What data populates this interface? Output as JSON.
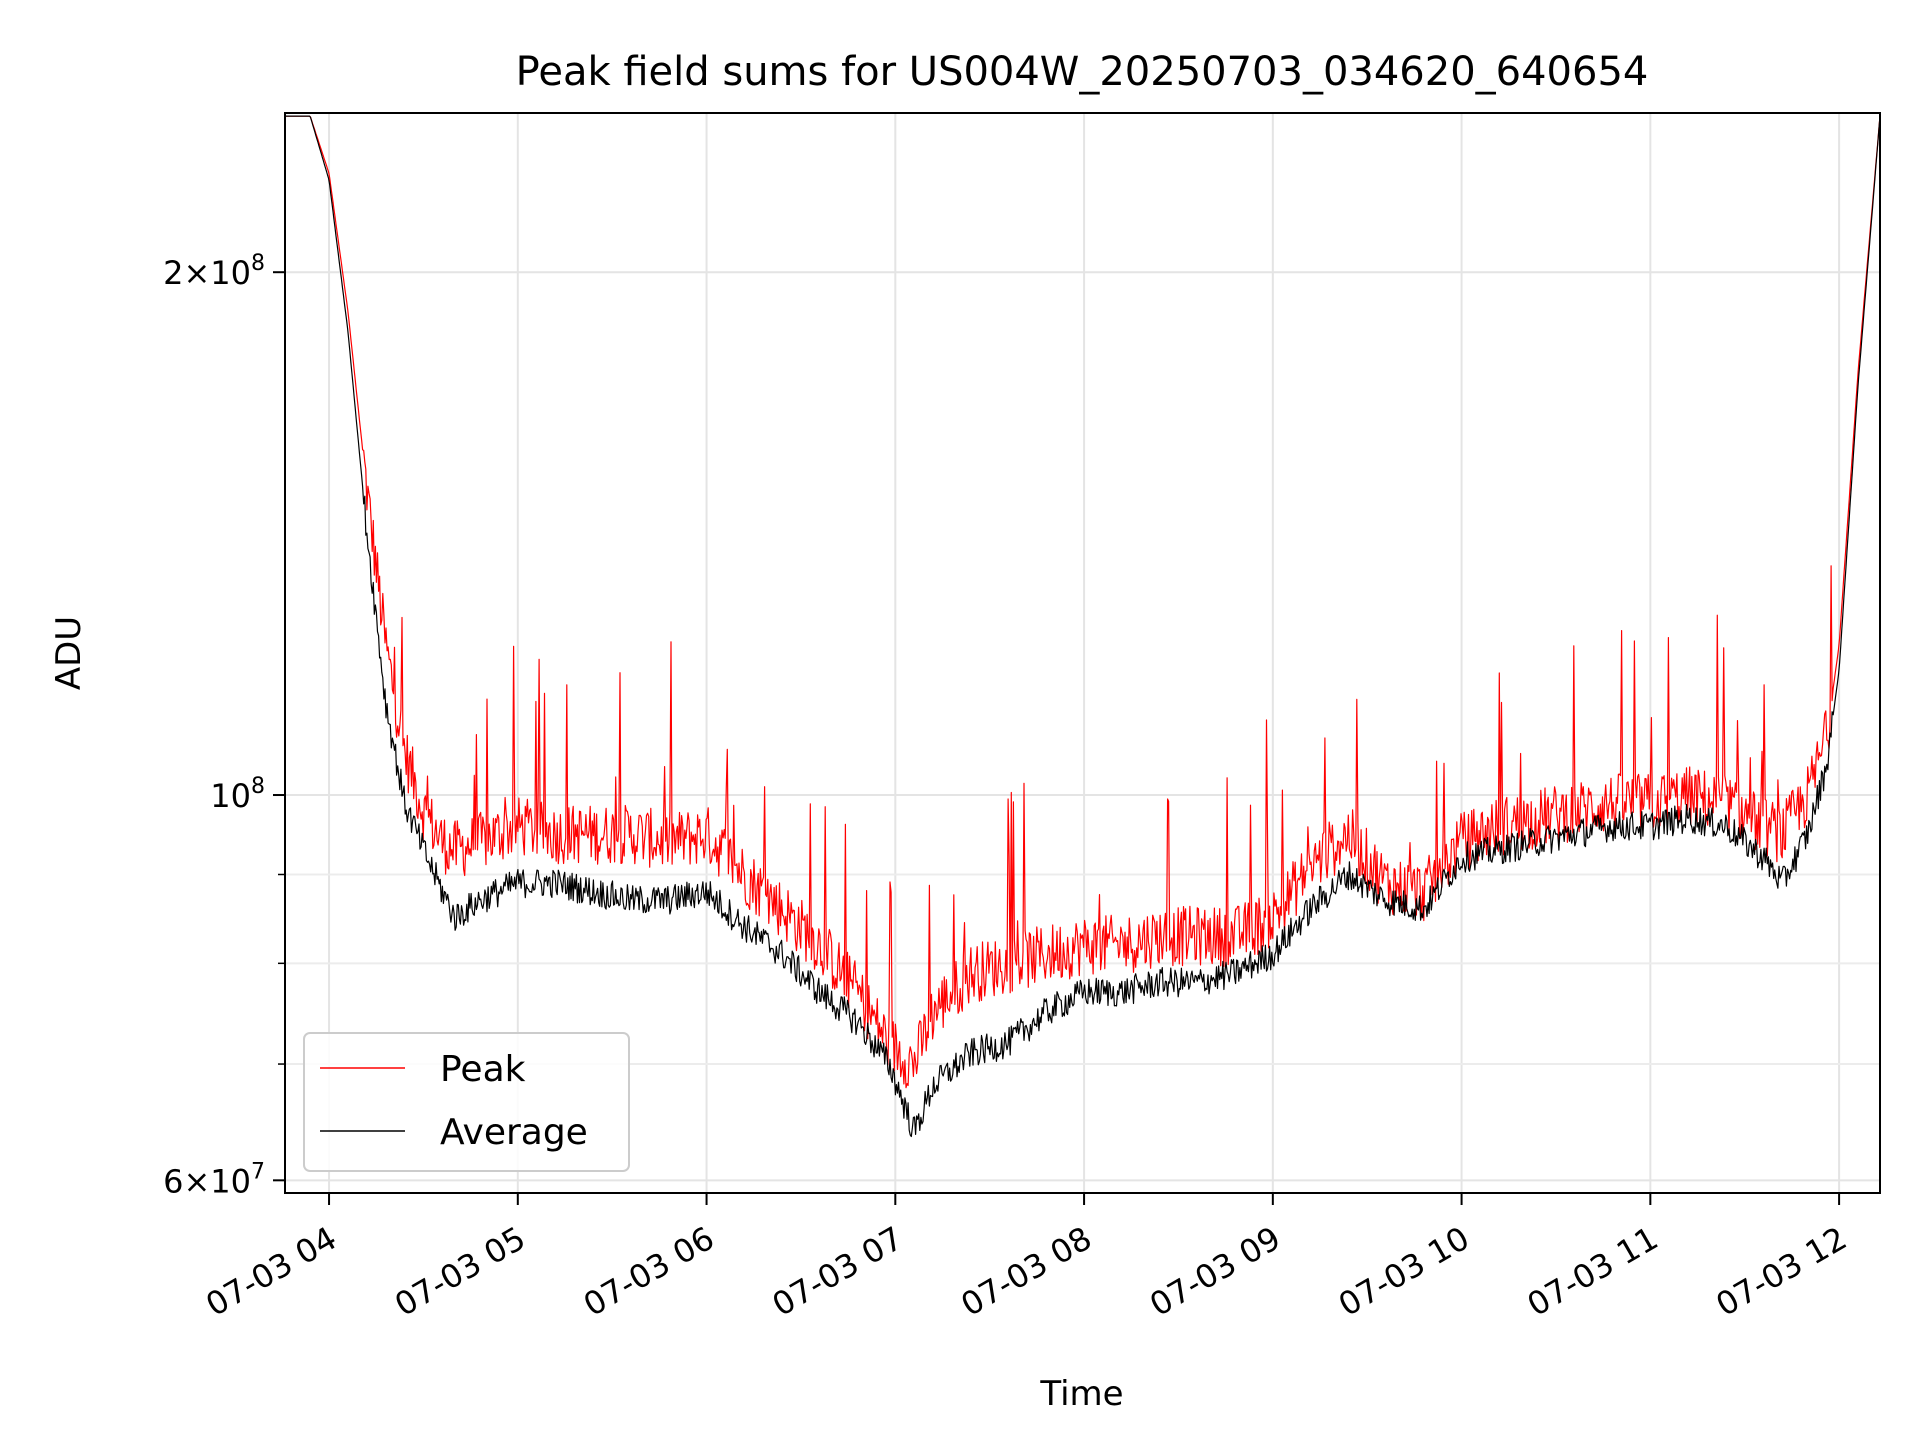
{
  "chart_data": {
    "type": "line",
    "title": "Peak field sums for US004W_20250703_034620_640654",
    "xlabel": "Time",
    "ylabel": "ADU",
    "y_scale": "log",
    "ylim": [
      59000000,
      247000000
    ],
    "xlim": [
      "2025-07-03 03:46",
      "2025-07-03 12:13"
    ],
    "x_ticks": [
      {
        "value": "2025-07-03 04:00",
        "label": "07-03 04"
      },
      {
        "value": "2025-07-03 05:00",
        "label": "07-03 05"
      },
      {
        "value": "2025-07-03 06:00",
        "label": "07-03 06"
      },
      {
        "value": "2025-07-03 07:00",
        "label": "07-03 07"
      },
      {
        "value": "2025-07-03 08:00",
        "label": "07-03 08"
      },
      {
        "value": "2025-07-03 09:00",
        "label": "07-03 09"
      },
      {
        "value": "2025-07-03 10:00",
        "label": "07-03 10"
      },
      {
        "value": "2025-07-03 11:00",
        "label": "07-03 11"
      },
      {
        "value": "2025-07-03 12:00",
        "label": "07-03 12"
      }
    ],
    "y_major_ticks": [
      {
        "value": 60000000,
        "mantissa": "6",
        "exp": "7"
      },
      {
        "value": 100000000,
        "mantissa": "",
        "exp": "8"
      },
      {
        "value": 200000000,
        "mantissa": "2",
        "exp": "8"
      }
    ],
    "y_minor_ticks": [
      70000000,
      80000000,
      90000000
    ],
    "grid": true,
    "legend": {
      "position": "lower-left"
    },
    "series": [
      {
        "name": "Peak",
        "color": "#ff0000",
        "x": [
          "2025-07-03 03:46",
          "2025-07-03 03:54",
          "2025-07-03 04:00",
          "2025-07-03 04:06",
          "2025-07-03 04:12",
          "2025-07-03 04:18",
          "2025-07-03 04:24",
          "2025-07-03 04:30",
          "2025-07-03 04:36",
          "2025-07-03 04:40",
          "2025-07-03 04:48",
          "2025-07-03 05:00",
          "2025-07-03 05:12",
          "2025-07-03 05:24",
          "2025-07-03 05:36",
          "2025-07-03 05:48",
          "2025-07-03 06:00",
          "2025-07-03 06:12",
          "2025-07-03 06:24",
          "2025-07-03 06:36",
          "2025-07-03 06:48",
          "2025-07-03 06:58",
          "2025-07-03 07:06",
          "2025-07-03 07:12",
          "2025-07-03 07:24",
          "2025-07-03 07:36",
          "2025-07-03 07:48",
          "2025-07-03 08:00",
          "2025-07-03 08:12",
          "2025-07-03 08:24",
          "2025-07-03 08:36",
          "2025-07-03 08:48",
          "2025-07-03 09:00",
          "2025-07-03 09:12",
          "2025-07-03 09:24",
          "2025-07-03 09:36",
          "2025-07-03 09:48",
          "2025-07-03 10:00",
          "2025-07-03 10:12",
          "2025-07-03 10:24",
          "2025-07-03 10:36",
          "2025-07-03 10:48",
          "2025-07-03 11:00",
          "2025-07-03 11:12",
          "2025-07-03 11:24",
          "2025-07-03 11:36",
          "2025-07-03 11:42",
          "2025-07-03 11:50",
          "2025-07-03 11:56",
          "2025-07-03 12:00",
          "2025-07-03 12:06",
          "2025-07-03 12:13"
        ],
        "y": [
          246000000,
          246000000,
          228000000,
          190000000,
          150000000,
          122000000,
          106000000,
          98000000,
          94000000,
          93000000,
          94000000,
          96000000,
          95000000,
          95000000,
          95000000,
          94000000,
          95000000,
          90000000,
          86000000,
          82000000,
          77000000,
          72000000,
          70000000,
          75000000,
          79000000,
          80000000,
          81000000,
          82000000,
          82000000,
          83000000,
          83000000,
          83000000,
          85000000,
          91000000,
          95000000,
          89000000,
          88000000,
          94000000,
          96000000,
          97000000,
          98000000,
          99000000,
          99000000,
          100000000,
          99000000,
          96000000,
          95000000,
          100000000,
          108000000,
          122000000,
          175000000,
          246000000
        ]
      },
      {
        "name": "Average",
        "color": "#000000",
        "x": [
          "2025-07-03 03:46",
          "2025-07-03 03:54",
          "2025-07-03 04:00",
          "2025-07-03 04:06",
          "2025-07-03 04:12",
          "2025-07-03 04:18",
          "2025-07-03 04:24",
          "2025-07-03 04:30",
          "2025-07-03 04:36",
          "2025-07-03 04:40",
          "2025-07-03 04:48",
          "2025-07-03 05:00",
          "2025-07-03 05:12",
          "2025-07-03 05:24",
          "2025-07-03 05:36",
          "2025-07-03 05:48",
          "2025-07-03 06:00",
          "2025-07-03 06:12",
          "2025-07-03 06:24",
          "2025-07-03 06:36",
          "2025-07-03 06:48",
          "2025-07-03 06:58",
          "2025-07-03 07:06",
          "2025-07-03 07:12",
          "2025-07-03 07:24",
          "2025-07-03 07:36",
          "2025-07-03 07:48",
          "2025-07-03 08:00",
          "2025-07-03 08:12",
          "2025-07-03 08:24",
          "2025-07-03 08:36",
          "2025-07-03 08:48",
          "2025-07-03 09:00",
          "2025-07-03 09:12",
          "2025-07-03 09:24",
          "2025-07-03 09:36",
          "2025-07-03 09:48",
          "2025-07-03 10:00",
          "2025-07-03 10:12",
          "2025-07-03 10:24",
          "2025-07-03 10:36",
          "2025-07-03 10:48",
          "2025-07-03 11:00",
          "2025-07-03 11:12",
          "2025-07-03 11:24",
          "2025-07-03 11:36",
          "2025-07-03 11:42",
          "2025-07-03 11:50",
          "2025-07-03 11:56",
          "2025-07-03 12:00",
          "2025-07-03 12:06",
          "2025-07-03 12:13"
        ],
        "y": [
          246000000,
          246000000,
          226000000,
          185000000,
          142000000,
          113000000,
          99000000,
          93000000,
          88000000,
          85000000,
          87000000,
          89000000,
          89000000,
          88000000,
          87000000,
          87000000,
          88000000,
          84000000,
          81000000,
          77000000,
          74000000,
          70000000,
          64000000,
          68000000,
          71000000,
          72000000,
          75000000,
          77000000,
          77000000,
          78000000,
          78000000,
          79000000,
          81000000,
          86000000,
          90000000,
          87000000,
          86000000,
          92000000,
          93000000,
          94000000,
          95000000,
          96000000,
          96000000,
          97000000,
          96000000,
          92000000,
          89000000,
          95000000,
          104000000,
          118000000,
          172000000,
          246000000
        ]
      }
    ]
  }
}
